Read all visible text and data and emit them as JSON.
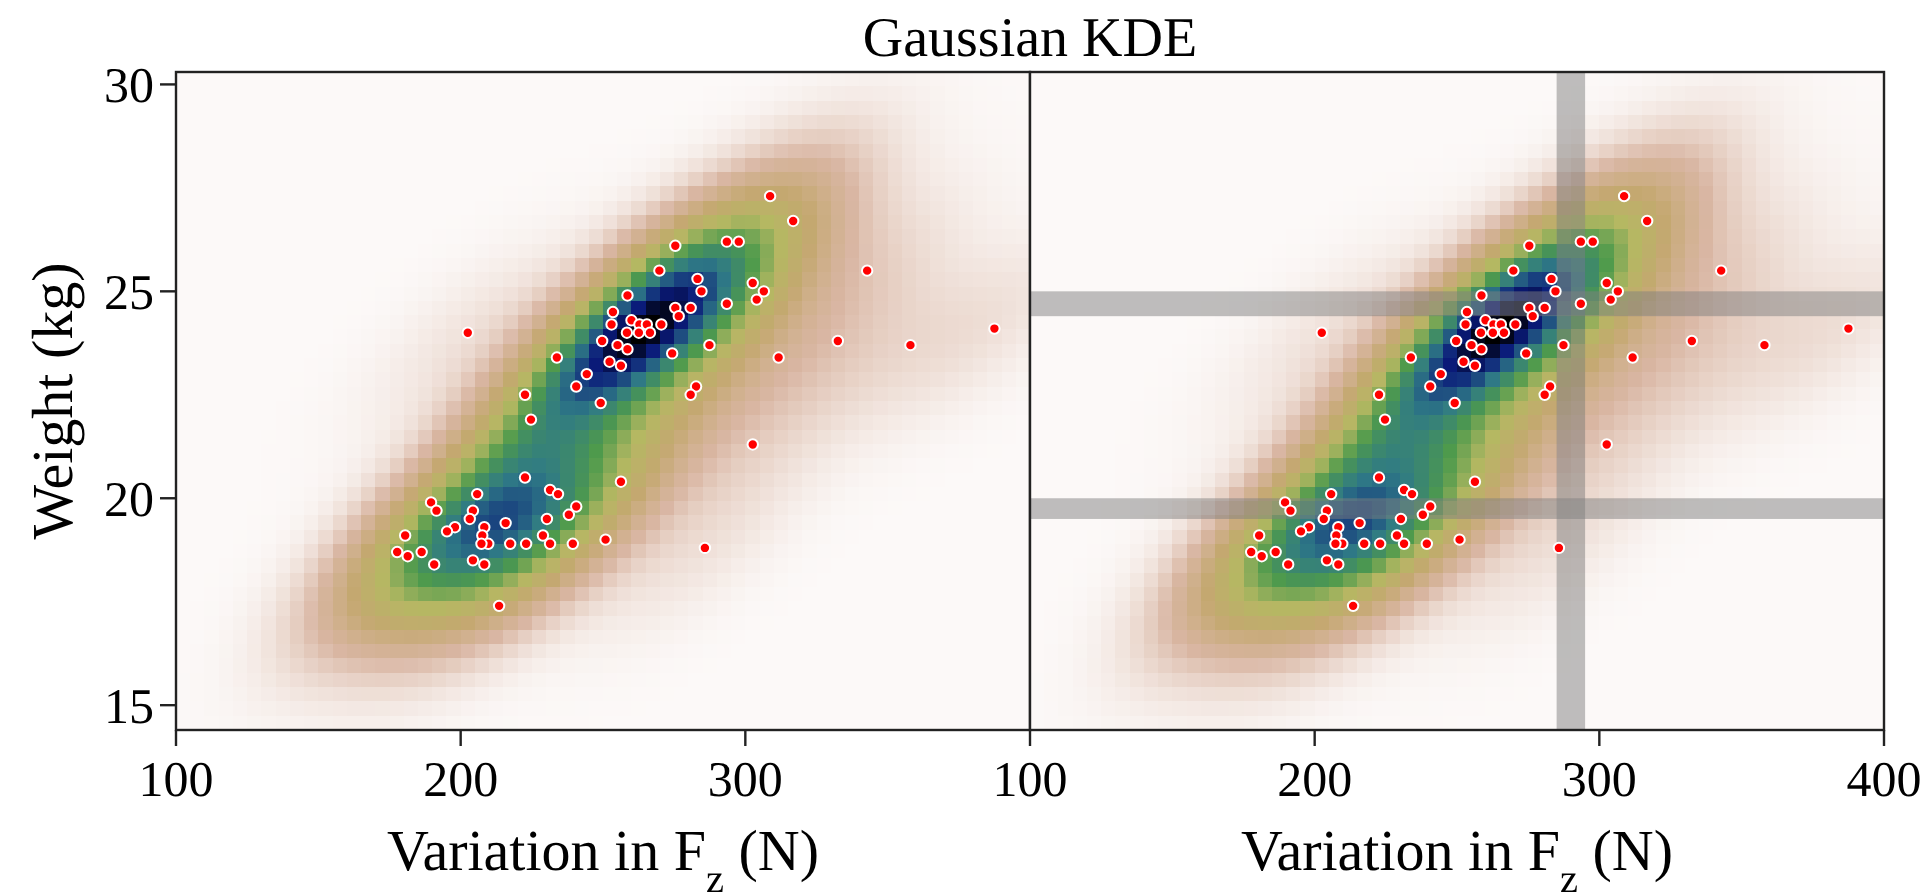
{
  "chart_data": [
    {
      "type": "scatter",
      "title": "Gaussian KDE",
      "xlabel": "Variation in F$_{z}$ (N)",
      "ylabel": "Weight (kg)",
      "color": "#ff0000",
      "marker": "circle",
      "xlim": [
        100,
        400
      ],
      "ylim": [
        14.4,
        30.3
      ],
      "xticks": [
        100,
        200,
        300
      ],
      "yticks": [
        15,
        20,
        25,
        30
      ],
      "x": [
        308.7,
        316.8,
        275.4,
        293.5,
        297.7,
        342.8,
        269.8,
        283.2,
        284.6,
        302.6,
        306.5,
        304,
        293.5,
        280.8,
        275.4,
        258.6,
        253.5,
        253,
        260,
        262.8,
        265.4,
        270.5,
        276.6,
        258.4,
        262.6,
        266.5,
        249.7,
        255.1,
        258.6,
        274.3,
        287.4,
        252.3,
        256.3,
        233.8,
        244.3,
        240.6,
        249.2,
        282.7,
        280.8,
        202.5,
        222.6,
        224.7,
        311.7,
        332.5,
        358,
        387.5,
        302.6,
        222.6,
        256.3,
        205.8,
        231.4,
        234.2,
        240.6,
        238,
        230.3,
        215.8,
        189.6,
        191.5,
        204.3,
        203.2,
        198,
        195.2,
        208.3,
        207.6,
        209.7,
        207.3,
        217.4,
        223,
        228.9,
        231.4,
        239.4,
        250.9,
        180.5,
        177.7,
        181.4,
        186.3,
        190.7,
        204.3,
        208.3,
        213.5,
        285.8
      ],
      "values": [
        27.3,
        26.7,
        26.1,
        26.2,
        26.2,
        25.5,
        25.5,
        25.3,
        25.0,
        25.2,
        25.0,
        24.8,
        24.7,
        24.6,
        24.6,
        24.9,
        24.5,
        24.2,
        24.3,
        24.2,
        24.2,
        24.2,
        24.4,
        24.0,
        24.0,
        24.0,
        23.8,
        23.7,
        23.6,
        23.5,
        23.7,
        23.3,
        23.2,
        23.4,
        23.0,
        22.7,
        22.3,
        22.7,
        22.5,
        24.0,
        22.5,
        21.9,
        23.4,
        23.8,
        23.7,
        24.1,
        21.3,
        20.5,
        20.4,
        20.1,
        20.2,
        20.1,
        19.8,
        19.6,
        19.5,
        19.4,
        19.9,
        19.7,
        19.7,
        19.5,
        19.3,
        19.2,
        19.3,
        19.1,
        18.9,
        18.9,
        18.9,
        18.9,
        19.1,
        18.9,
        18.9,
        19.0,
        19.1,
        18.7,
        18.6,
        18.7,
        18.4,
        18.5,
        18.4,
        17.4,
        18.8
      ]
    },
    {
      "type": "scatter",
      "xlabel": "Variation in F$_{z}$ (N)",
      "color": "#ff0000",
      "marker": "circle",
      "xlim": [
        100,
        400
      ],
      "ylim": [
        14.4,
        30.3
      ],
      "xticks": [
        100,
        200,
        300,
        400
      ],
      "tick_labels": "x",
      "bands": [
        {
          "axis": "x",
          "from": 285,
          "to": 295,
          "color": "#808080"
        },
        {
          "axis": "y",
          "from": 24.4,
          "to": 25.0,
          "color": "#808080"
        },
        {
          "axis": "y",
          "from": 19.5,
          "to": 20.0,
          "color": "#808080"
        }
      ],
      "x": [
        308.7,
        316.8,
        275.4,
        293.5,
        297.7,
        342.8,
        269.8,
        283.2,
        284.6,
        302.6,
        306.5,
        304,
        293.5,
        280.8,
        275.4,
        258.6,
        253.5,
        253,
        260,
        262.8,
        265.4,
        270.5,
        276.6,
        258.4,
        262.6,
        266.5,
        249.7,
        255.1,
        258.6,
        274.3,
        287.4,
        252.3,
        256.3,
        233.8,
        244.3,
        240.6,
        249.2,
        282.7,
        280.8,
        202.5,
        222.6,
        224.7,
        311.7,
        332.5,
        358,
        387.5,
        302.6,
        222.6,
        256.3,
        205.8,
        231.4,
        234.2,
        240.6,
        238,
        230.3,
        215.8,
        189.6,
        191.5,
        204.3,
        203.2,
        198,
        195.2,
        208.3,
        207.6,
        209.7,
        207.3,
        217.4,
        223,
        228.9,
        231.4,
        239.4,
        250.9,
        180.5,
        177.7,
        181.4,
        186.3,
        190.7,
        204.3,
        208.3,
        213.5,
        285.8
      ],
      "values": [
        27.3,
        26.7,
        26.1,
        26.2,
        26.2,
        25.5,
        25.5,
        25.3,
        25.0,
        25.2,
        25.0,
        24.8,
        24.7,
        24.6,
        24.6,
        24.9,
        24.5,
        24.2,
        24.3,
        24.2,
        24.2,
        24.2,
        24.4,
        24.0,
        24.0,
        24.0,
        23.8,
        23.7,
        23.6,
        23.5,
        23.7,
        23.3,
        23.2,
        23.4,
        23.0,
        22.7,
        22.3,
        22.7,
        22.5,
        24.0,
        22.5,
        21.9,
        23.4,
        23.8,
        23.7,
        24.1,
        21.3,
        20.5,
        20.4,
        20.1,
        20.2,
        20.1,
        19.8,
        19.6,
        19.5,
        19.4,
        19.9,
        19.7,
        19.7,
        19.5,
        19.3,
        19.2,
        19.3,
        19.1,
        18.9,
        18.9,
        18.9,
        18.9,
        19.1,
        18.9,
        18.9,
        19.0,
        19.1,
        18.7,
        18.6,
        18.7,
        18.4,
        18.5,
        18.4,
        17.4,
        18.8
      ]
    }
  ]
}
